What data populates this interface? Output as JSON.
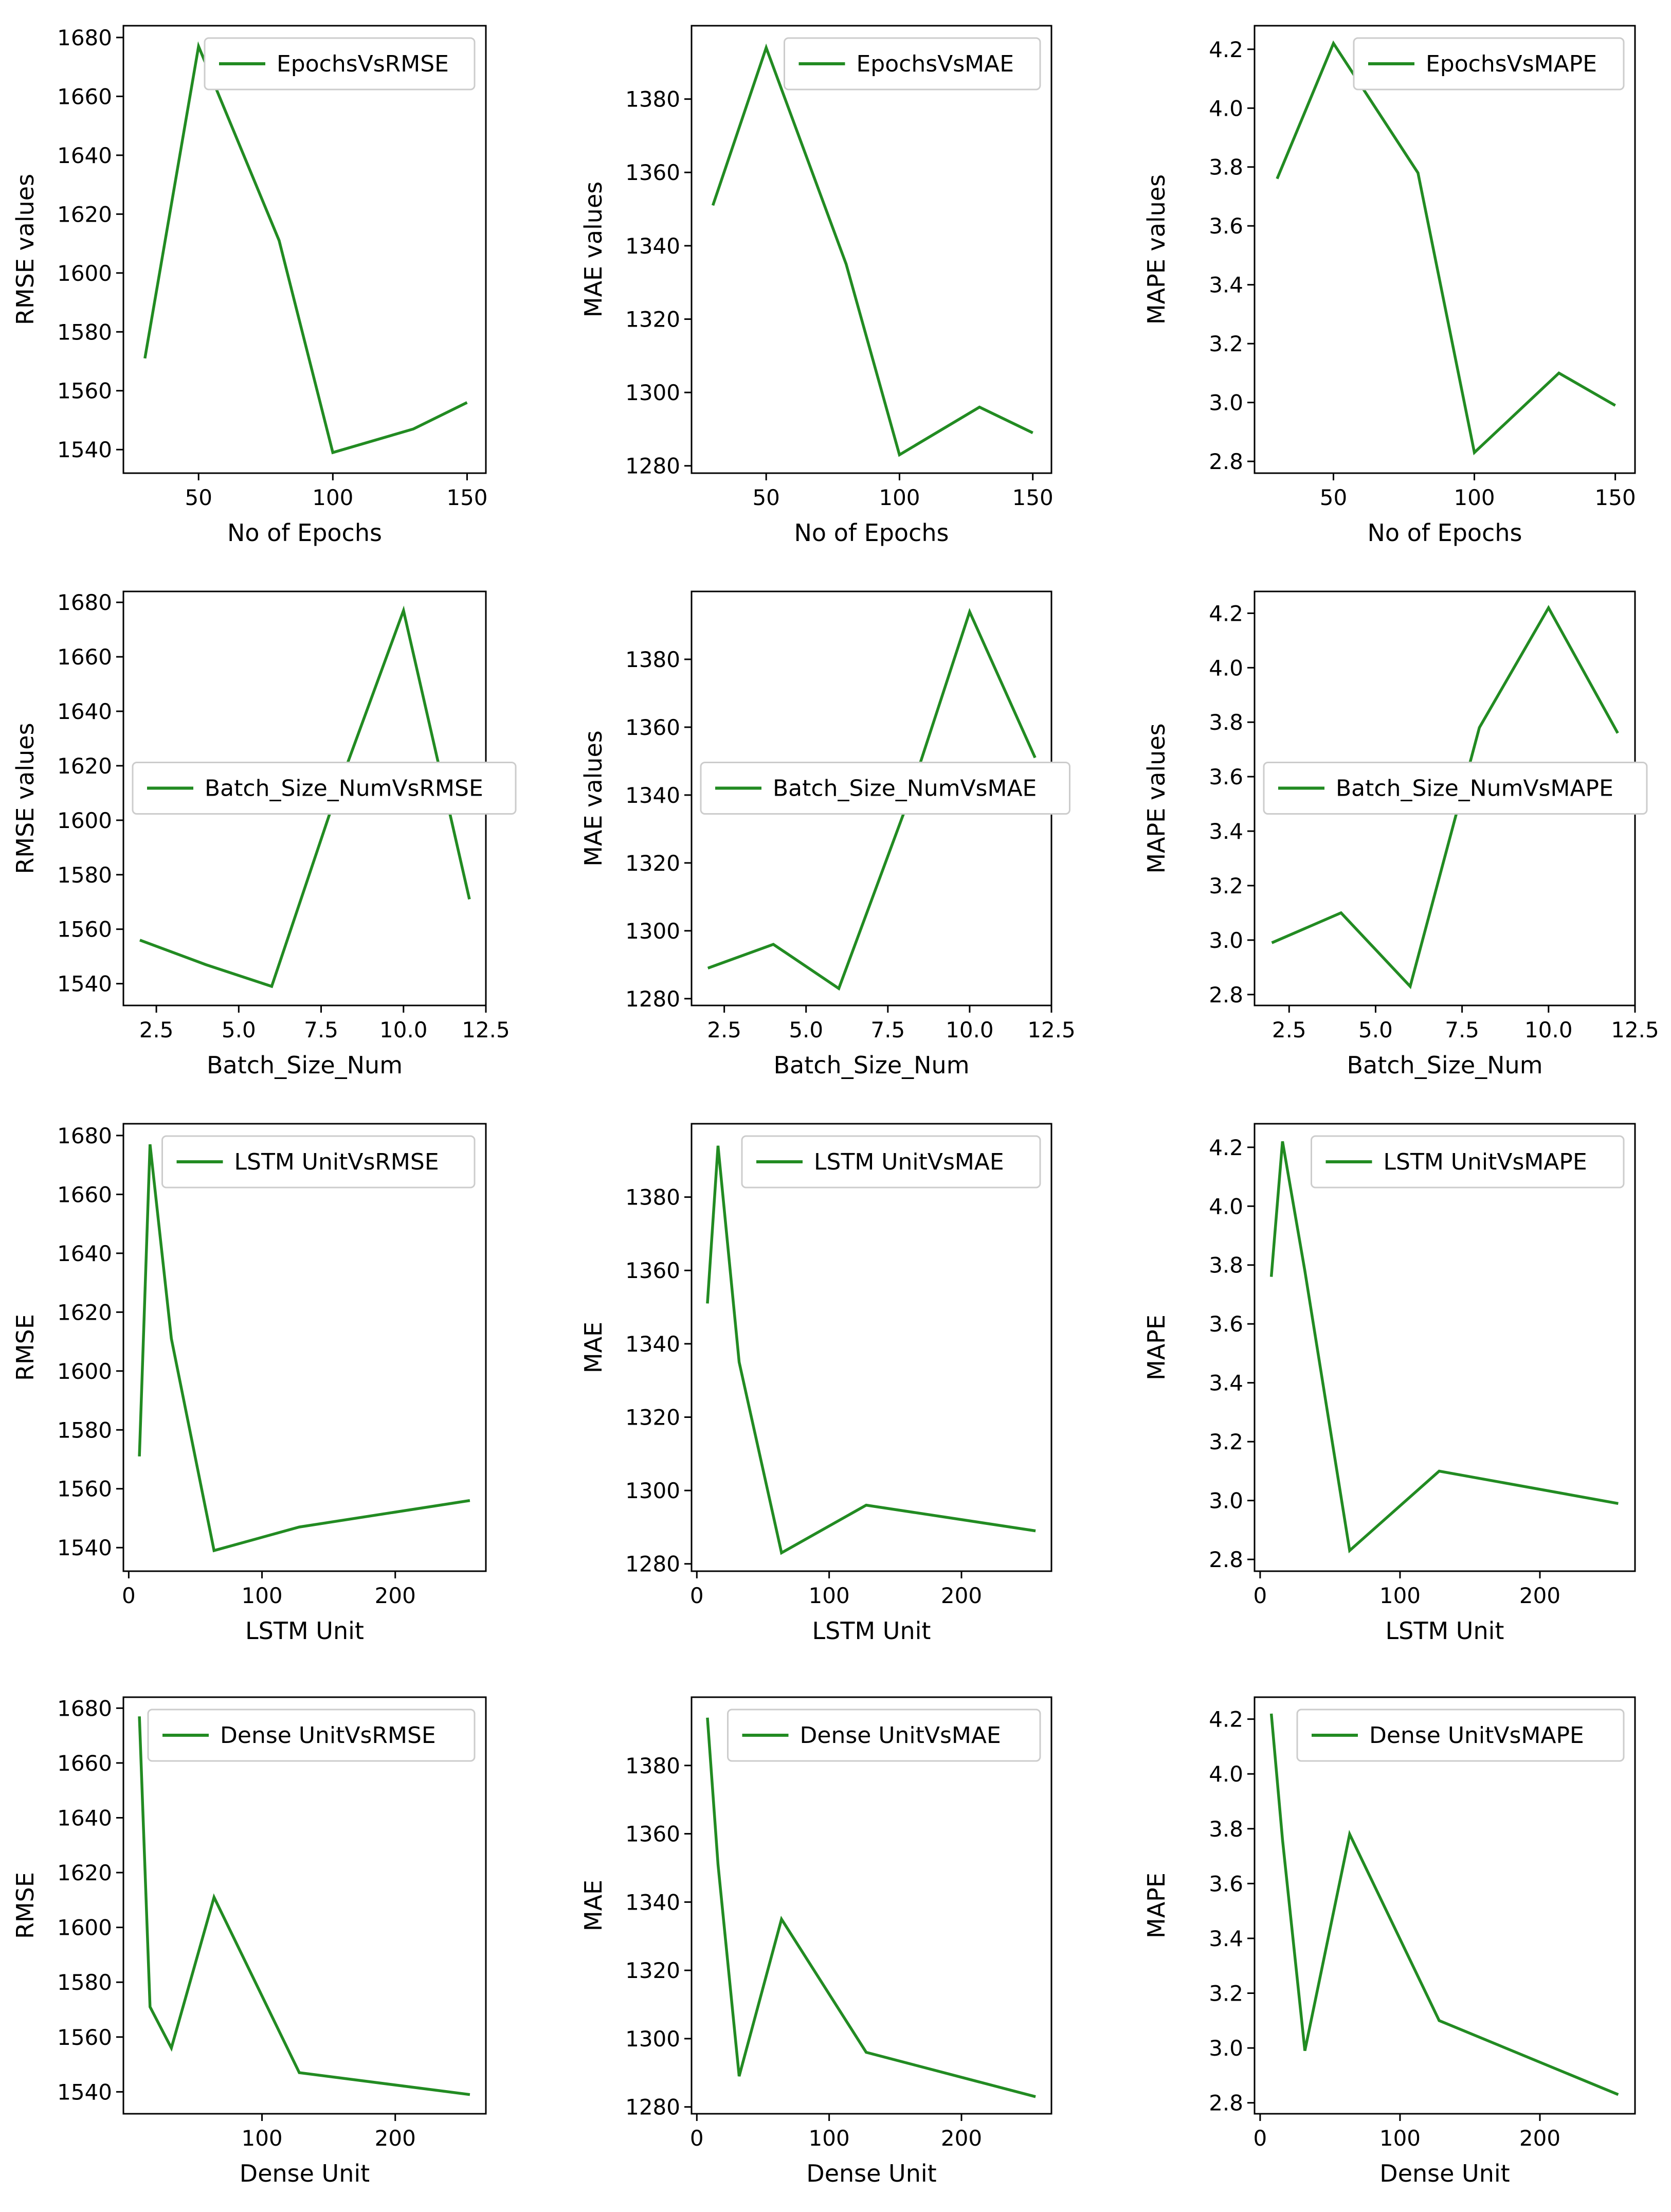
{
  "figure": {
    "line_color": "#228B22",
    "panel_count": 12
  },
  "chart_data": [
    {
      "type": "line",
      "series": [
        {
          "name": "EpochsVsRMSE",
          "x": [
            30,
            50,
            80,
            100,
            130,
            150
          ],
          "y": [
            1571,
            1677,
            1611,
            1539,
            1547,
            1556
          ]
        }
      ],
      "xlabel": "No of Epochs",
      "ylabel": "RMSE values",
      "xlim": [
        22,
        157
      ],
      "ylim": [
        1532,
        1684
      ],
      "xticks": [
        50,
        100,
        150
      ],
      "xtick_labels": [
        "50",
        "100",
        "150"
      ],
      "yticks": [
        1540,
        1560,
        1580,
        1600,
        1620,
        1640,
        1660,
        1680
      ],
      "ytick_labels": [
        "1540",
        "1560",
        "1580",
        "1600",
        "1620",
        "1640",
        "1660",
        "1680"
      ],
      "legend": "upper right",
      "grid": false
    },
    {
      "type": "line",
      "series": [
        {
          "name": "EpochsVsMAE",
          "x": [
            30,
            50,
            80,
            100,
            130,
            150
          ],
          "y": [
            1351,
            1394,
            1335,
            1283,
            1296,
            1289
          ]
        }
      ],
      "xlabel": "No of Epochs",
      "ylabel": "MAE values",
      "xlim": [
        22,
        157
      ],
      "ylim": [
        1278,
        1400
      ],
      "xticks": [
        50,
        100,
        150
      ],
      "xtick_labels": [
        "50",
        "100",
        "150"
      ],
      "yticks": [
        1280,
        1300,
        1320,
        1340,
        1360,
        1380
      ],
      "ytick_labels": [
        "1280",
        "1300",
        "1320",
        "1340",
        "1360",
        "1380"
      ],
      "legend": "upper right",
      "grid": false
    },
    {
      "type": "line",
      "series": [
        {
          "name": "EpochsVsMAPE",
          "x": [
            30,
            50,
            80,
            100,
            130,
            150
          ],
          "y": [
            3.76,
            4.22,
            3.78,
            2.83,
            3.1,
            2.99
          ]
        }
      ],
      "xlabel": "No of Epochs",
      "ylabel": "MAPE values",
      "xlim": [
        22,
        157
      ],
      "ylim": [
        2.76,
        4.28
      ],
      "xticks": [
        50,
        100,
        150
      ],
      "xtick_labels": [
        "50",
        "100",
        "150"
      ],
      "yticks": [
        2.8,
        3.0,
        3.2,
        3.4,
        3.6,
        3.8,
        4.0,
        4.2
      ],
      "ytick_labels": [
        "2.8",
        "3.0",
        "3.2",
        "3.4",
        "3.6",
        "3.8",
        "4.0",
        "4.2"
      ],
      "legend": "upper right",
      "grid": false
    },
    {
      "type": "line",
      "series": [
        {
          "name": "Batch_Size_NumVsRMSE",
          "x": [
            2,
            4,
            6,
            8,
            10,
            12
          ],
          "y": [
            1556,
            1547,
            1539,
            1611,
            1677,
            1571
          ]
        }
      ],
      "xlabel": "Batch_Size_Num",
      "ylabel": "RMSE values",
      "xlim": [
        1.5,
        12.5
      ],
      "ylim": [
        1532,
        1684
      ],
      "xticks": [
        2.5,
        5.0,
        7.5,
        10.0,
        12.5
      ],
      "xtick_labels": [
        "2.5",
        "5.0",
        "7.5",
        "10.0",
        "12.5"
      ],
      "yticks": [
        1540,
        1560,
        1580,
        1600,
        1620,
        1640,
        1660,
        1680
      ],
      "ytick_labels": [
        "1540",
        "1560",
        "1580",
        "1600",
        "1620",
        "1640",
        "1660",
        "1680"
      ],
      "legend": "center left",
      "grid": false
    },
    {
      "type": "line",
      "series": [
        {
          "name": "Batch_Size_NumVsMAE",
          "x": [
            2,
            4,
            6,
            8,
            10,
            12
          ],
          "y": [
            1289,
            1296,
            1283,
            1335,
            1394,
            1351
          ]
        }
      ],
      "xlabel": "Batch_Size_Num",
      "ylabel": "MAE values",
      "xlim": [
        1.5,
        12.5
      ],
      "ylim": [
        1278,
        1400
      ],
      "xticks": [
        2.5,
        5.0,
        7.5,
        10.0,
        12.5
      ],
      "xtick_labels": [
        "2.5",
        "5.0",
        "7.5",
        "10.0",
        "12.5"
      ],
      "yticks": [
        1280,
        1300,
        1320,
        1340,
        1360,
        1380
      ],
      "ytick_labels": [
        "1280",
        "1300",
        "1320",
        "1340",
        "1360",
        "1380"
      ],
      "legend": "center left",
      "grid": false
    },
    {
      "type": "line",
      "series": [
        {
          "name": "Batch_Size_NumVsMAPE",
          "x": [
            2,
            4,
            6,
            8,
            10,
            12
          ],
          "y": [
            2.99,
            3.1,
            2.83,
            3.78,
            4.22,
            3.76
          ]
        }
      ],
      "xlabel": "Batch_Size_Num",
      "ylabel": "MAPE values",
      "xlim": [
        1.5,
        12.5
      ],
      "ylim": [
        2.76,
        4.28
      ],
      "xticks": [
        2.5,
        5.0,
        7.5,
        10.0,
        12.5
      ],
      "xtick_labels": [
        "2.5",
        "5.0",
        "7.5",
        "10.0",
        "12.5"
      ],
      "yticks": [
        2.8,
        3.0,
        3.2,
        3.4,
        3.6,
        3.8,
        4.0,
        4.2
      ],
      "ytick_labels": [
        "2.8",
        "3.0",
        "3.2",
        "3.4",
        "3.6",
        "3.8",
        "4.0",
        "4.2"
      ],
      "legend": "center left",
      "grid": false
    },
    {
      "type": "line",
      "series": [
        {
          "name": "LSTM UnitVsRMSE",
          "x": [
            8,
            16,
            32,
            64,
            128,
            256
          ],
          "y": [
            1571,
            1677,
            1611,
            1539,
            1547,
            1556
          ]
        }
      ],
      "xlabel": "LSTM Unit",
      "ylabel": "RMSE",
      "xlim": [
        -4,
        268
      ],
      "ylim": [
        1532,
        1684
      ],
      "xticks": [
        0,
        100,
        200
      ],
      "xtick_labels": [
        "0",
        "100",
        "200"
      ],
      "yticks": [
        1540,
        1560,
        1580,
        1600,
        1620,
        1640,
        1660,
        1680
      ],
      "ytick_labels": [
        "1540",
        "1560",
        "1580",
        "1600",
        "1620",
        "1640",
        "1660",
        "1680"
      ],
      "legend": "upper right",
      "grid": false
    },
    {
      "type": "line",
      "series": [
        {
          "name": "LSTM UnitVsMAE",
          "x": [
            8,
            16,
            32,
            64,
            128,
            256
          ],
          "y": [
            1351,
            1394,
            1335,
            1283,
            1296,
            1289
          ]
        }
      ],
      "xlabel": "LSTM Unit",
      "ylabel": "MAE",
      "xlim": [
        -4,
        268
      ],
      "ylim": [
        1278,
        1400
      ],
      "xticks": [
        0,
        100,
        200
      ],
      "xtick_labels": [
        "0",
        "100",
        "200"
      ],
      "yticks": [
        1280,
        1300,
        1320,
        1340,
        1360,
        1380
      ],
      "ytick_labels": [
        "1280",
        "1300",
        "1320",
        "1340",
        "1360",
        "1380"
      ],
      "legend": "upper right",
      "grid": false
    },
    {
      "type": "line",
      "series": [
        {
          "name": "LSTM UnitVsMAPE",
          "x": [
            8,
            16,
            32,
            64,
            128,
            256
          ],
          "y": [
            3.76,
            4.22,
            3.78,
            2.83,
            3.1,
            2.99
          ]
        }
      ],
      "xlabel": "LSTM Unit",
      "ylabel": "MAPE",
      "xlim": [
        -4,
        268
      ],
      "ylim": [
        2.76,
        4.28
      ],
      "xticks": [
        0,
        100,
        200
      ],
      "xtick_labels": [
        "0",
        "100",
        "200"
      ],
      "yticks": [
        2.8,
        3.0,
        3.2,
        3.4,
        3.6,
        3.8,
        4.0,
        4.2
      ],
      "ytick_labels": [
        "2.8",
        "3.0",
        "3.2",
        "3.4",
        "3.6",
        "3.8",
        "4.0",
        "4.2"
      ],
      "legend": "upper right",
      "grid": false
    },
    {
      "type": "line",
      "series": [
        {
          "name": "Dense UnitVsRMSE",
          "x": [
            8,
            16,
            32,
            64,
            128,
            256
          ],
          "y": [
            1677,
            1571,
            1556,
            1611,
            1547,
            1539
          ]
        }
      ],
      "xlabel": "Dense Unit",
      "ylabel": "RMSE",
      "xlim": [
        -4,
        268
      ],
      "ylim": [
        1532,
        1684
      ],
      "xticks": [
        100,
        200
      ],
      "xtick_labels": [
        "100",
        "200"
      ],
      "yticks": [
        1540,
        1560,
        1580,
        1600,
        1620,
        1640,
        1660,
        1680
      ],
      "ytick_labels": [
        "1540",
        "1560",
        "1580",
        "1600",
        "1620",
        "1640",
        "1660",
        "1680"
      ],
      "legend": "upper right",
      "grid": false
    },
    {
      "type": "line",
      "series": [
        {
          "name": "Dense UnitVsMAE",
          "x": [
            8,
            16,
            32,
            64,
            128,
            256
          ],
          "y": [
            1394,
            1351,
            1289,
            1335,
            1296,
            1283
          ]
        }
      ],
      "xlabel": "Dense Unit",
      "ylabel": "MAE",
      "xlim": [
        -4,
        268
      ],
      "ylim": [
        1278,
        1400
      ],
      "xticks": [
        0,
        100,
        200
      ],
      "xtick_labels": [
        "0",
        "100",
        "200"
      ],
      "yticks": [
        1280,
        1300,
        1320,
        1340,
        1360,
        1380
      ],
      "ytick_labels": [
        "1280",
        "1300",
        "1320",
        "1340",
        "1360",
        "1380"
      ],
      "legend": "upper right",
      "grid": false
    },
    {
      "type": "line",
      "series": [
        {
          "name": "Dense UnitVsMAPE",
          "x": [
            8,
            16,
            32,
            64,
            128,
            256
          ],
          "y": [
            4.22,
            3.76,
            2.99,
            3.78,
            3.1,
            2.83
          ]
        }
      ],
      "xlabel": "Dense Unit",
      "ylabel": "MAPE",
      "xlim": [
        -4,
        268
      ],
      "ylim": [
        2.76,
        4.28
      ],
      "xticks": [
        0,
        100,
        200
      ],
      "xtick_labels": [
        "0",
        "100",
        "200"
      ],
      "yticks": [
        2.8,
        3.0,
        3.2,
        3.4,
        3.6,
        3.8,
        4.0,
        4.2
      ],
      "ytick_labels": [
        "2.8",
        "3.0",
        "3.2",
        "3.4",
        "3.6",
        "3.8",
        "4.0",
        "4.2"
      ],
      "legend": "upper right",
      "grid": false
    }
  ]
}
